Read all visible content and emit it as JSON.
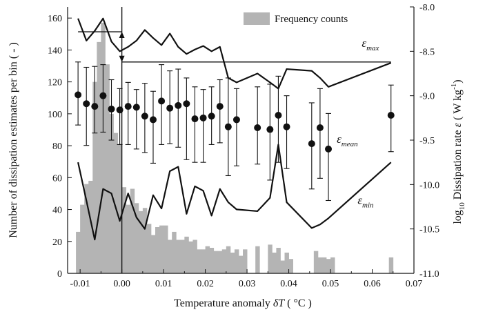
{
  "chart_data": {
    "type": "bar+line+scatter",
    "xlabel_main": "Temperature anomaly ",
    "xlabel_var": "δT",
    "xlabel_unit": " ( °C )",
    "ylabel_left": "Number of dissipation estimates per bin ( - )",
    "ylabel_right_pre": "log",
    "ylabel_right_sub": "10",
    "ylabel_right_main": " Dissipation rate ",
    "ylabel_right_var": "ε",
    "ylabel_right_unit": "  ( W kg",
    "ylabel_right_sup": "-1",
    "ylabel_right_close": ")",
    "xlim": [
      -0.013,
      0.07
    ],
    "ylim_left": [
      0,
      167
    ],
    "ylim_right": [
      -11.0,
      -8.0
    ],
    "x_ticks": [
      -0.01,
      0.0,
      0.01,
      0.02,
      0.03,
      0.04,
      0.05,
      0.06,
      0.07
    ],
    "x_tick_labels": [
      "-0.01",
      "0.00",
      "0.01",
      "0.02",
      "0.03",
      "0.04",
      "0.05",
      "0.06",
      "0.07"
    ],
    "y_left_ticks": [
      0,
      20,
      40,
      60,
      80,
      100,
      120,
      140,
      160
    ],
    "y_right_ticks": [
      -8.0,
      -8.5,
      -9.0,
      -9.5,
      -10.0,
      -10.5,
      -11.0
    ],
    "y_right_tick_labels": [
      "-8.0",
      "-8.5",
      "-9.0",
      "-9.5",
      "-10.0",
      "-10.5",
      "-11.0"
    ],
    "legend": {
      "label": "Frequency counts",
      "position": "top-center",
      "color": "#b4b4b4"
    },
    "histogram": {
      "name": "Frequency counts",
      "bin_width": 0.001,
      "bins": [
        {
          "x": -0.011,
          "count": 26
        },
        {
          "x": -0.01,
          "count": 43
        },
        {
          "x": -0.009,
          "count": 56
        },
        {
          "x": -0.008,
          "count": 58
        },
        {
          "x": -0.007,
          "count": 120
        },
        {
          "x": -0.006,
          "count": 145
        },
        {
          "x": -0.005,
          "count": 157
        },
        {
          "x": -0.004,
          "count": 131
        },
        {
          "x": -0.003,
          "count": 100
        },
        {
          "x": -0.002,
          "count": 88
        },
        {
          "x": -0.001,
          "count": 81
        },
        {
          "x": 0.0,
          "count": 54
        },
        {
          "x": 0.001,
          "count": 43
        },
        {
          "x": 0.002,
          "count": 53
        },
        {
          "x": 0.003,
          "count": 44
        },
        {
          "x": 0.004,
          "count": 39
        },
        {
          "x": 0.005,
          "count": 41
        },
        {
          "x": 0.006,
          "count": 31
        },
        {
          "x": 0.007,
          "count": 24
        },
        {
          "x": 0.008,
          "count": 29
        },
        {
          "x": 0.009,
          "count": 30
        },
        {
          "x": 0.01,
          "count": 30
        },
        {
          "x": 0.011,
          "count": 21
        },
        {
          "x": 0.012,
          "count": 26
        },
        {
          "x": 0.013,
          "count": 21
        },
        {
          "x": 0.014,
          "count": 21
        },
        {
          "x": 0.015,
          "count": 23
        },
        {
          "x": 0.016,
          "count": 20
        },
        {
          "x": 0.017,
          "count": 21
        },
        {
          "x": 0.018,
          "count": 15
        },
        {
          "x": 0.019,
          "count": 15
        },
        {
          "x": 0.02,
          "count": 17
        },
        {
          "x": 0.021,
          "count": 16
        },
        {
          "x": 0.022,
          "count": 14
        },
        {
          "x": 0.023,
          "count": 14
        },
        {
          "x": 0.024,
          "count": 15
        },
        {
          "x": 0.025,
          "count": 17
        },
        {
          "x": 0.026,
          "count": 13
        },
        {
          "x": 0.027,
          "count": 15
        },
        {
          "x": 0.028,
          "count": 11
        },
        {
          "x": 0.029,
          "count": 15
        },
        {
          "x": 0.032,
          "count": 17
        },
        {
          "x": 0.035,
          "count": 18
        },
        {
          "x": 0.036,
          "count": 13
        },
        {
          "x": 0.037,
          "count": 16
        },
        {
          "x": 0.038,
          "count": 8
        },
        {
          "x": 0.039,
          "count": 13
        },
        {
          "x": 0.04,
          "count": 9
        },
        {
          "x": 0.046,
          "count": 14
        },
        {
          "x": 0.047,
          "count": 10
        },
        {
          "x": 0.048,
          "count": 10
        },
        {
          "x": 0.049,
          "count": 9
        },
        {
          "x": 0.05,
          "count": 10
        },
        {
          "x": 0.064,
          "count": 10
        }
      ]
    },
    "series": [
      {
        "name": "ε_mean",
        "type": "scatter",
        "x": [
          -0.0105,
          -0.0085,
          -0.0065,
          -0.0045,
          -0.0025,
          -0.0005,
          0.0015,
          0.0035,
          0.0055,
          0.0075,
          0.0095,
          0.0115,
          0.0135,
          0.0155,
          0.0175,
          0.0195,
          0.0215,
          0.0235,
          0.0255,
          0.0275,
          0.0325,
          0.0355,
          0.0375,
          0.0395,
          0.0455,
          0.0475,
          0.0495,
          0.0645
        ],
        "y": [
          -8.99,
          -9.09,
          -9.12,
          -9.0,
          -9.15,
          -9.16,
          -9.12,
          -9.13,
          -9.23,
          -9.27,
          -9.06,
          -9.14,
          -9.11,
          -9.09,
          -9.26,
          -9.25,
          -9.23,
          -9.12,
          -9.35,
          -9.27,
          -9.36,
          -9.38,
          -9.22,
          -9.35,
          -9.54,
          -9.36,
          -9.6,
          -9.22
        ],
        "error_low": [
          -9.33,
          -9.56,
          -9.42,
          -9.41,
          -9.5,
          -9.55,
          -9.55,
          -9.6,
          -9.64,
          -9.76,
          -9.55,
          -9.54,
          -9.58,
          -9.72,
          -9.75,
          -9.75,
          -9.55,
          -9.53,
          -9.9,
          -9.79,
          -9.77,
          -9.95,
          -9.75,
          -9.82,
          -10.05,
          -9.93,
          -10.18,
          -9.63
        ],
        "error_high": [
          -8.62,
          -8.68,
          -8.67,
          -8.65,
          -8.82,
          -8.92,
          -8.85,
          -8.93,
          -8.86,
          -8.95,
          -8.65,
          -8.72,
          -8.7,
          -8.8,
          -8.9,
          -8.93,
          -8.9,
          -8.82,
          -8.8,
          -8.92,
          -8.9,
          -8.87,
          -8.78,
          -9.0,
          -9.08,
          -8.92,
          -9.2,
          -8.88
        ]
      },
      {
        "name": "ε_max",
        "type": "line",
        "x": [
          -0.0105,
          -0.0085,
          -0.0065,
          -0.0045,
          -0.0025,
          -0.0005,
          0.0015,
          0.0035,
          0.0055,
          0.0075,
          0.0095,
          0.0115,
          0.0135,
          0.0155,
          0.0175,
          0.0195,
          0.0215,
          0.0235,
          0.0255,
          0.0275,
          0.0325,
          0.0355,
          0.0375,
          0.0395,
          0.0455,
          0.0475,
          0.0495,
          0.0645
        ],
        "y": [
          -8.13,
          -8.38,
          -8.27,
          -8.13,
          -8.39,
          -8.5,
          -8.45,
          -8.38,
          -8.26,
          -8.35,
          -8.43,
          -8.3,
          -8.45,
          -8.53,
          -8.48,
          -8.44,
          -8.5,
          -8.45,
          -8.8,
          -8.85,
          -8.75,
          -8.85,
          -8.92,
          -8.7,
          -8.72,
          -8.8,
          -8.9,
          -8.63
        ]
      },
      {
        "name": "ε_min",
        "type": "line",
        "x": [
          -0.0105,
          -0.0085,
          -0.0065,
          -0.0045,
          -0.0025,
          -0.0005,
          0.0015,
          0.0035,
          0.0055,
          0.0075,
          0.0095,
          0.0115,
          0.0135,
          0.0155,
          0.0175,
          0.0195,
          0.0215,
          0.0235,
          0.0255,
          0.0275,
          0.0325,
          0.0355,
          0.0375,
          0.0395,
          0.0455,
          0.0475,
          0.0495,
          0.0645
        ],
        "y": [
          -9.75,
          -10.18,
          -10.62,
          -10.05,
          -10.1,
          -10.41,
          -10.1,
          -10.37,
          -10.5,
          -10.12,
          -10.27,
          -9.85,
          -9.8,
          -10.33,
          -10.02,
          -10.07,
          -10.35,
          -10.05,
          -10.2,
          -10.28,
          -10.3,
          -10.15,
          -9.55,
          -10.2,
          -10.49,
          -10.45,
          -10.38,
          -9.75
        ]
      }
    ],
    "annotations": [
      {
        "base": "ε",
        "sub": "max",
        "x": 0.0575,
        "y": -8.45
      },
      {
        "base": "ε",
        "sub": "mean",
        "x": 0.0515,
        "y": -9.53
      },
      {
        "base": "ε",
        "sub": "min",
        "x": 0.0565,
        "y": -10.22
      }
    ],
    "reference_lines": [
      {
        "x1": -0.0105,
        "x2": 0.0,
        "y": -8.28
      },
      {
        "x1": 0.0,
        "x2": 0.0645,
        "y": -8.62
      }
    ],
    "vertical_line_x": 0.0,
    "double_arrow": {
      "x": 0.0,
      "y1": -8.28,
      "y2": -8.62
    },
    "colors": {
      "histogram": "#b4b4b4",
      "lines": "#111111",
      "markers": "#111111"
    }
  }
}
